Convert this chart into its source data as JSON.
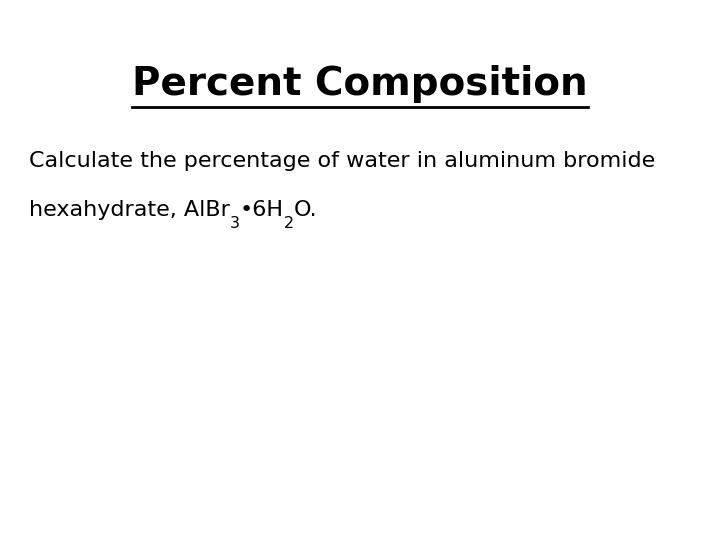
{
  "title": "Percent Composition",
  "title_fontsize": 28,
  "body_line1": "Calculate the percentage of water in aluminum bromide",
  "body_line2_parts": [
    {
      "text": "hexahydrate, AlBr",
      "style": "normal"
    },
    {
      "text": "3",
      "style": "subscript"
    },
    {
      "text": "•6H",
      "style": "normal"
    },
    {
      "text": "2",
      "style": "subscript"
    },
    {
      "text": "O.",
      "style": "normal"
    }
  ],
  "body_fontsize": 16,
  "background_color": "#ffffff",
  "text_color": "#000000"
}
